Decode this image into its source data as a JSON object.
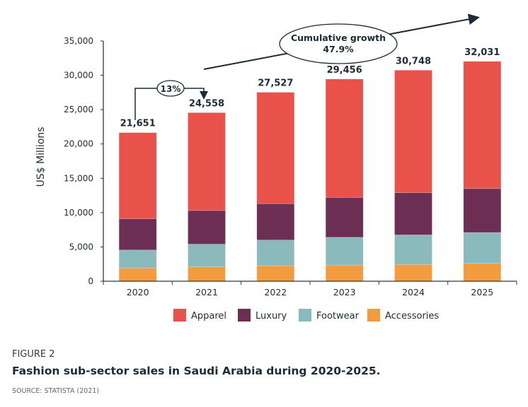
{
  "figure": {
    "label": "FIGURE 2",
    "title": "Fashion sub-sector sales in Saudi Arabia during 2020-2025.",
    "source": "SOURCE: STATISTA (2021)"
  },
  "chart_data": {
    "type": "bar",
    "stacked": true,
    "title": "Fashion sub-sector sales in Saudi Arabia during 2020-2025.",
    "xlabel": "",
    "ylabel": "US$ Millions",
    "ylim": [
      0,
      35000
    ],
    "yticks": [
      0,
      5000,
      10000,
      15000,
      20000,
      25000,
      30000,
      35000
    ],
    "ytick_labels": [
      "0",
      "5,000",
      "10,000",
      "15,000",
      "20,000",
      "25,000",
      "30,000",
      "35,000"
    ],
    "categories": [
      "2020",
      "2021",
      "2022",
      "2023",
      "2024",
      "2025"
    ],
    "series": [
      {
        "name": "Accessories",
        "color": "#f39c3f",
        "values": [
          1900,
          2100,
          2250,
          2350,
          2450,
          2600
        ]
      },
      {
        "name": "Footwear",
        "color": "#8bbabd",
        "values": [
          2650,
          3300,
          3750,
          4050,
          4300,
          4500
        ]
      },
      {
        "name": "Luxury",
        "color": "#6c2f53",
        "values": [
          4550,
          4900,
          5300,
          5800,
          6150,
          6400
        ]
      },
      {
        "name": "Apparel",
        "color": "#e8524a",
        "values": [
          12551,
          14258,
          16227,
          17256,
          17848,
          18531
        ]
      }
    ],
    "legend_order": [
      "Apparel",
      "Luxury",
      "Footwear",
      "Accessories"
    ],
    "legend_position": "bottom",
    "totals": [
      21651,
      24558,
      27527,
      29456,
      30748,
      32031
    ],
    "total_labels": [
      "21,651",
      "24,558",
      "27,527",
      "29,456",
      "30,748",
      "32,031"
    ],
    "annotations": {
      "yoy_growth": "13%",
      "cumulative_label": "Cumulative growth",
      "cumulative_value": "47.9%"
    },
    "grid": false
  }
}
